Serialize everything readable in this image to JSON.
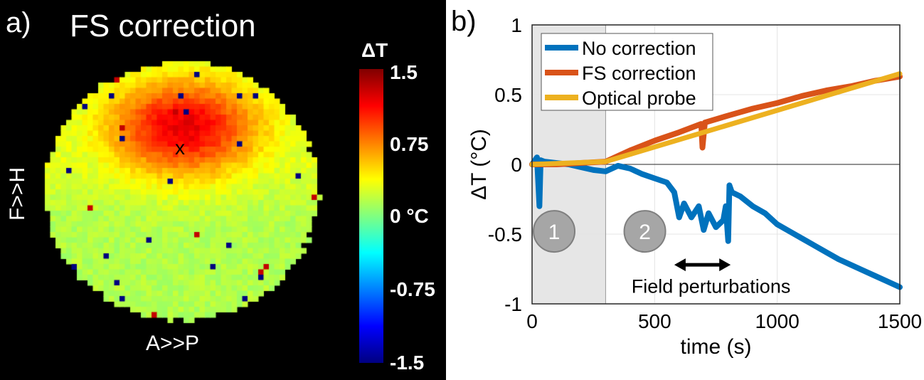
{
  "chart_data": [
    {
      "type": "heatmap",
      "panel_label": "a)",
      "title": "FS correction",
      "xlabel": "A>>P",
      "ylabel": "F>>H",
      "marker": "x",
      "colorbar": {
        "title": "ΔT",
        "ticks": [
          "1.5",
          "0.75",
          "0 °C",
          "-0.75",
          "-1.5"
        ],
        "range": [
          -1.5,
          1.5
        ],
        "colormap": "jet"
      },
      "description_values": {
        "hotspot_max": 1.1,
        "background": 0.3,
        "lower_region": 0.0
      }
    },
    {
      "type": "line",
      "panel_label": "b)",
      "xlabel": "time (s)",
      "ylabel": "ΔT (°C)",
      "xlim": [
        0,
        1500
      ],
      "ylim": [
        -1,
        1
      ],
      "xticks": [
        0,
        500,
        1000,
        1500
      ],
      "yticks": [
        1,
        0.5,
        0,
        -0.5,
        -1
      ],
      "ytick_labels": [
        "1",
        "0.5",
        "0",
        "-0.5",
        "-1"
      ],
      "grid": true,
      "legend": "top-left",
      "shaded_region": [
        0,
        300
      ],
      "phase_labels": [
        "1",
        "2"
      ],
      "annotation": "Field perturbations",
      "annotation_range": [
        580,
        810
      ],
      "series": [
        {
          "name": "No correction",
          "color": "#0072bd",
          "x": [
            0,
            20,
            30,
            35,
            50,
            100,
            150,
            200,
            250,
            300,
            350,
            400,
            450,
            500,
            550,
            580,
            600,
            620,
            650,
            680,
            700,
            720,
            750,
            780,
            790,
            800,
            805,
            815,
            850,
            900,
            950,
            1000,
            1050,
            1100,
            1150,
            1200,
            1250,
            1300,
            1350,
            1400,
            1450,
            1500
          ],
          "y": [
            0,
            0.05,
            -0.3,
            0.03,
            0.02,
            0.01,
            0.0,
            -0.02,
            -0.04,
            -0.05,
            -0.01,
            -0.03,
            -0.07,
            -0.1,
            -0.13,
            -0.2,
            -0.38,
            -0.28,
            -0.38,
            -0.3,
            -0.47,
            -0.35,
            -0.45,
            -0.4,
            -0.3,
            -0.55,
            -0.15,
            -0.2,
            -0.23,
            -0.3,
            -0.35,
            -0.43,
            -0.48,
            -0.53,
            -0.58,
            -0.63,
            -0.68,
            -0.72,
            -0.76,
            -0.8,
            -0.84,
            -0.88
          ]
        },
        {
          "name": "FS correction",
          "color": "#d95319",
          "x": [
            0,
            100,
            200,
            300,
            400,
            500,
            600,
            690,
            695,
            705,
            800,
            900,
            1000,
            1100,
            1200,
            1300,
            1400,
            1500
          ],
          "y": [
            0,
            0.0,
            0.01,
            0.02,
            0.1,
            0.17,
            0.23,
            0.29,
            0.12,
            0.3,
            0.35,
            0.4,
            0.44,
            0.49,
            0.53,
            0.56,
            0.6,
            0.63
          ]
        },
        {
          "name": "Optical probe",
          "color": "#edb120",
          "x": [
            0,
            300,
            1500
          ],
          "y": [
            0,
            0.02,
            0.65
          ]
        }
      ]
    }
  ]
}
